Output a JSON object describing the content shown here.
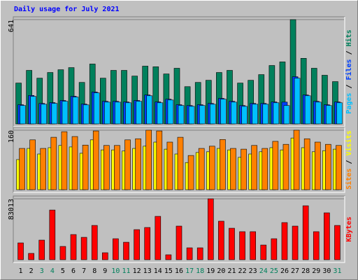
{
  "chart_data": [
    {
      "type": "bar",
      "title": "Daily usage for July 2021",
      "ylim": [
        0,
        641
      ],
      "yticks": [
        641
      ],
      "legend_separator": " / ",
      "series": [
        {
          "name": "Hits",
          "color": "#00805c",
          "values": [
            251,
            329,
            281,
            316,
            333,
            346,
            255,
            368,
            281,
            329,
            329,
            294,
            355,
            351,
            307,
            342,
            229,
            255,
            268,
            316,
            329,
            251,
            268,
            303,
            359,
            381,
            641,
            403,
            342,
            299,
            260
          ]
        },
        {
          "name": "Files",
          "color": "#0040ff",
          "values": [
            118,
            175,
            126,
            131,
            144,
            170,
            122,
            196,
            139,
            139,
            135,
            144,
            178,
            135,
            152,
            118,
            113,
            118,
            126,
            157,
            139,
            113,
            126,
            126,
            135,
            134,
            290,
            178,
            139,
            118,
            135
          ]
        },
        {
          "name": "Pages",
          "color": "#00c0ff",
          "values": [
            113,
            169,
            121,
            126,
            139,
            165,
            117,
            191,
            134,
            134,
            130,
            139,
            173,
            130,
            147,
            113,
            108,
            113,
            121,
            152,
            134,
            108,
            121,
            121,
            130,
            113,
            281,
            173,
            134,
            113,
            130
          ]
        }
      ]
    },
    {
      "type": "bar",
      "ylim": [
        0,
        160
      ],
      "yticks": [
        160
      ],
      "legend_separator": " / ",
      "series": [
        {
          "name": "Visits",
          "color": "#ffff00",
          "values": [
            81,
            111,
            96,
            113,
            119,
            115,
            98,
            134,
            107,
            107,
            104,
            111,
            117,
            128,
            109,
            96,
            73,
            100,
            102,
            111,
            107,
            87,
            96,
            102,
            113,
            107,
            139,
            113,
            102,
            105,
            109
          ]
        },
        {
          "name": "Sites",
          "color": "#ff8000",
          "values": [
            111,
            134,
            111,
            141,
            156,
            143,
            120,
            158,
            119,
            119,
            134,
            137,
            160,
            158,
            128,
            141,
            92,
            111,
            117,
            135,
            111,
            109,
            119,
            111,
            130,
            122,
            160,
            137,
            128,
            122,
            119
          ]
        }
      ]
    },
    {
      "type": "bar",
      "ylim": [
        0,
        83013
      ],
      "yticks": [
        83013
      ],
      "categories": [
        "1",
        "2",
        "3",
        "4",
        "5",
        "6",
        "7",
        "8",
        "9",
        "10",
        "11",
        "12",
        "13",
        "14",
        "15",
        "16",
        "17",
        "18",
        "19",
        "20",
        "21",
        "22",
        "23",
        "24",
        "25",
        "26",
        "27",
        "28",
        "29",
        "30",
        "31"
      ],
      "category_colors": [
        "#000000",
        "#000000",
        "#00805c",
        "#00805c",
        "#000000",
        "#000000",
        "#000000",
        "#000000",
        "#000000",
        "#00805c",
        "#00805c",
        "#000000",
        "#000000",
        "#000000",
        "#000000",
        "#000000",
        "#00805c",
        "#00805c",
        "#000000",
        "#000000",
        "#000000",
        "#000000",
        "#000000",
        "#00805c",
        "#00805c",
        "#000000",
        "#000000",
        "#000000",
        "#000000",
        "#000000",
        "#00805c"
      ],
      "series": [
        {
          "name": "KBytes",
          "color": "#ff0000",
          "values": [
            22900,
            8600,
            26700,
            67700,
            18100,
            34300,
            30500,
            46700,
            9500,
            28600,
            23800,
            41000,
            43900,
            59100,
            6700,
            45800,
            16200,
            16200,
            83013,
            52500,
            42900,
            38200,
            38200,
            20000,
            28600,
            50600,
            45800,
            73500,
            38200,
            63900,
            46700
          ]
        }
      ]
    }
  ]
}
